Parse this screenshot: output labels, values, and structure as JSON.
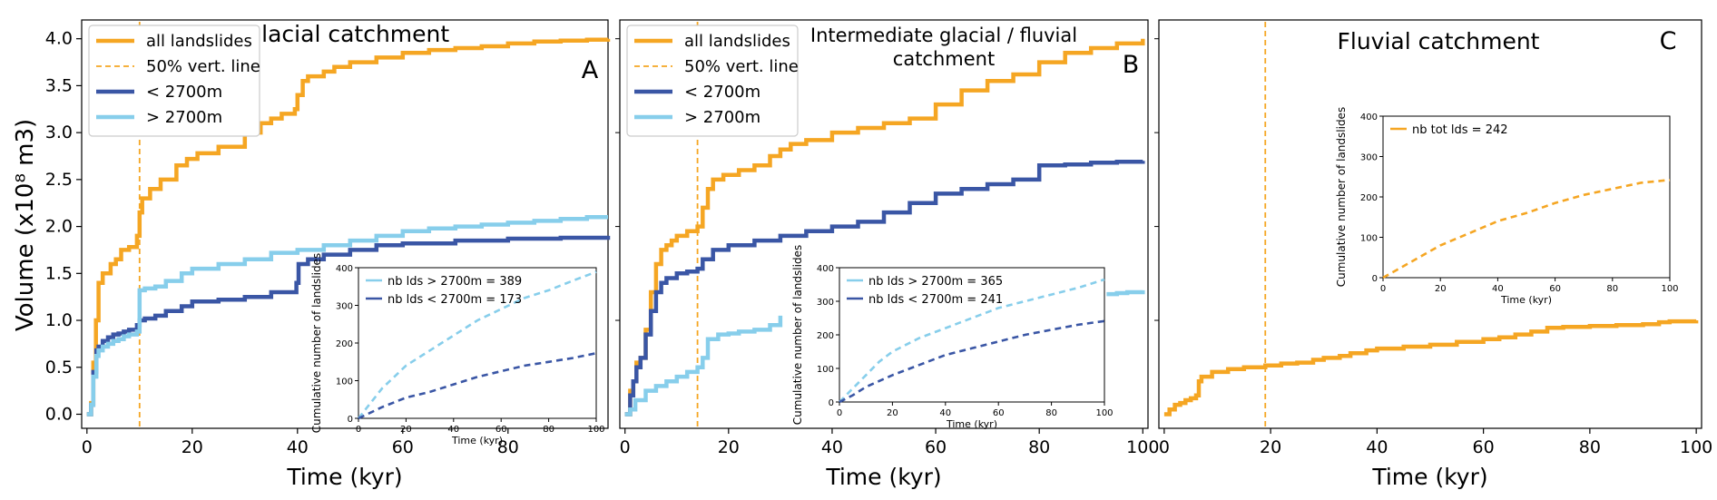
{
  "figure": {
    "ylabel": "Volume (x10⁸ m3)"
  },
  "colors": {
    "all": "#F5A623",
    "low": "#3A56A5",
    "high": "#87CEEB"
  },
  "chart_data": [
    {
      "panel_letter": "A",
      "title": "Glacial catchment",
      "type": "line",
      "xlabel": "Time (kyr)",
      "xlim": [
        -1,
        99
      ],
      "ylim": [
        -0.15,
        4.2
      ],
      "xticks": [
        "0",
        "20",
        "40",
        "60",
        "80"
      ],
      "yticks": [
        "0.0",
        "0.5",
        "1.0",
        "1.5",
        "2.0",
        "2.5",
        "3.0",
        "3.5",
        "4.0"
      ],
      "legend": [
        "all landslides",
        "50% vert. line",
        "< 2700m",
        "> 2700m"
      ],
      "legend_position": "top-left",
      "vline_x": 10,
      "series": [
        {
          "name": "all landslides",
          "x": [
            0,
            0.8,
            1.2,
            1.7,
            2.2,
            3,
            4.5,
            5.5,
            6.5,
            8,
            9.5,
            10,
            10.5,
            12,
            14,
            17,
            19,
            21,
            25,
            30,
            33,
            35,
            37,
            39.5,
            40,
            41,
            42,
            45,
            47,
            50,
            55,
            60,
            65,
            70,
            75,
            80,
            85,
            90,
            95,
            99
          ],
          "values": [
            0,
            0.12,
            0.55,
            1.0,
            1.4,
            1.5,
            1.6,
            1.65,
            1.75,
            1.78,
            1.9,
            2.15,
            2.3,
            2.4,
            2.5,
            2.65,
            2.72,
            2.78,
            2.85,
            3.0,
            3.1,
            3.15,
            3.2,
            3.25,
            3.4,
            3.55,
            3.6,
            3.65,
            3.7,
            3.75,
            3.8,
            3.85,
            3.88,
            3.9,
            3.92,
            3.95,
            3.97,
            3.98,
            3.99,
            4.0
          ]
        },
        {
          "name": "< 2700m",
          "x": [
            0,
            0.8,
            1.2,
            1.8,
            2.2,
            3,
            4,
            5,
            6,
            7,
            8,
            9.5,
            10,
            11,
            13,
            15,
            18,
            20,
            25,
            30,
            35,
            39.8,
            40.2,
            42,
            45,
            50,
            55,
            60,
            70,
            80,
            90,
            99
          ],
          "values": [
            0,
            0.1,
            0.45,
            0.68,
            0.72,
            0.78,
            0.82,
            0.85,
            0.86,
            0.88,
            0.9,
            0.95,
            1.0,
            1.02,
            1.05,
            1.1,
            1.15,
            1.2,
            1.22,
            1.25,
            1.3,
            1.4,
            1.6,
            1.65,
            1.7,
            1.75,
            1.8,
            1.82,
            1.85,
            1.87,
            1.88,
            1.9
          ]
        },
        {
          "name": "> 2700m",
          "x": [
            0,
            0.8,
            1.2,
            1.8,
            2.2,
            3,
            4,
            5,
            6,
            7,
            8,
            9.5,
            10,
            11,
            13,
            15,
            18,
            20,
            25,
            30,
            35,
            40,
            45,
            50,
            55,
            60,
            65,
            70,
            75,
            80,
            85,
            90,
            95,
            99
          ],
          "values": [
            0,
            0.1,
            0.4,
            0.62,
            0.68,
            0.72,
            0.75,
            0.78,
            0.8,
            0.83,
            0.85,
            0.88,
            1.32,
            1.34,
            1.36,
            1.42,
            1.5,
            1.55,
            1.6,
            1.65,
            1.72,
            1.75,
            1.8,
            1.85,
            1.9,
            1.95,
            1.98,
            2.0,
            2.02,
            2.04,
            2.06,
            2.08,
            2.1,
            2.1
          ]
        }
      ],
      "inset": {
        "type": "line",
        "ylabel": "Cumulative number of landslides",
        "xlabel": "Time (kyr)",
        "xlim": [
          0,
          100
        ],
        "ylim": [
          0,
          400
        ],
        "xticks": [
          "0",
          "20",
          "40",
          "60",
          "80",
          "100"
        ],
        "yticks": [
          "0",
          "100",
          "200",
          "300",
          "400"
        ],
        "legend": [
          "nb lds > 2700m = 389",
          "nb lds < 2700m = 173"
        ],
        "series": [
          {
            "name": "nb lds > 2700m = 389",
            "x": [
              0,
              5,
              10,
              15,
              20,
              30,
              40,
              50,
              60,
              70,
              80,
              90,
              100
            ],
            "values": [
              0,
              40,
              80,
              110,
              140,
              180,
              220,
              260,
              290,
              320,
              340,
              365,
              389
            ]
          },
          {
            "name": "nb lds < 2700m = 173",
            "x": [
              0,
              5,
              10,
              20,
              30,
              40,
              50,
              60,
              70,
              80,
              90,
              100
            ],
            "values": [
              0,
              15,
              30,
              55,
              70,
              90,
              110,
              125,
              140,
              150,
              160,
              173
            ]
          }
        ]
      }
    },
    {
      "panel_letter": "B",
      "title": "Intermediate glacial / fluvial catchment",
      "title_lines": [
        "Intermediate glacial / fluvial",
        "catchment"
      ],
      "type": "line",
      "xlabel": "Time (kyr)",
      "xlim": [
        -1,
        101
      ],
      "ylim": [
        -0.15,
        4.2
      ],
      "xticks": [
        "0",
        "20",
        "40",
        "60",
        "80",
        "100"
      ],
      "yticks": [],
      "legend": [
        "all landslides",
        "50% vert. line",
        "< 2700m",
        "> 2700m"
      ],
      "legend_position": "top-left",
      "vline_x": 14,
      "series": [
        {
          "name": "all landslides",
          "x": [
            0,
            1,
            1.6,
            2.2,
            3,
            4,
            5,
            6,
            7,
            8,
            9,
            10,
            12,
            14,
            15,
            16,
            17,
            19,
            22,
            25,
            28,
            30,
            32,
            35,
            40,
            45,
            50,
            55,
            60,
            65,
            70,
            75,
            80,
            85,
            90,
            95,
            100
          ],
          "values": [
            0,
            0.25,
            0.35,
            0.55,
            0.6,
            0.9,
            1.3,
            1.6,
            1.75,
            1.8,
            1.85,
            1.9,
            1.95,
            2.0,
            2.2,
            2.4,
            2.5,
            2.55,
            2.6,
            2.65,
            2.75,
            2.82,
            2.88,
            2.92,
            3.0,
            3.05,
            3.1,
            3.15,
            3.3,
            3.45,
            3.55,
            3.62,
            3.75,
            3.85,
            3.9,
            3.95,
            4.0
          ]
        },
        {
          "name": "< 2700m",
          "x": [
            0,
            1,
            1.6,
            2.2,
            3,
            4,
            5,
            6,
            7,
            8,
            10,
            12,
            14,
            15,
            17,
            20,
            25,
            30,
            35,
            40,
            45,
            50,
            55,
            60,
            65,
            70,
            75,
            80,
            85,
            90,
            95,
            100
          ],
          "values": [
            0,
            0.2,
            0.35,
            0.5,
            0.6,
            0.85,
            1.1,
            1.3,
            1.4,
            1.45,
            1.5,
            1.52,
            1.55,
            1.65,
            1.75,
            1.8,
            1.85,
            1.9,
            1.95,
            2.0,
            2.05,
            2.15,
            2.25,
            2.35,
            2.4,
            2.45,
            2.5,
            2.65,
            2.66,
            2.68,
            2.69,
            2.7
          ]
        },
        {
          "name": "> 2700m",
          "x": [
            0,
            1,
            2,
            4,
            6,
            8,
            10,
            12,
            14,
            15,
            16,
            18,
            20,
            22,
            25,
            28,
            30
          ],
          "values": [
            0,
            0.05,
            0.15,
            0.25,
            0.3,
            0.35,
            0.4,
            0.45,
            0.5,
            0.6,
            0.8,
            0.85,
            0.86,
            0.88,
            0.9,
            0.95,
            1.05
          ]
        },
        {
          "name": "> 2700m (right part)",
          "x": [
            93,
            95,
            97,
            100
          ],
          "values": [
            1.28,
            1.29,
            1.3,
            1.32
          ]
        }
      ],
      "inset": {
        "type": "line",
        "ylabel": "Cumulative number of landslides",
        "xlabel": "Time (kyr)",
        "xlim": [
          0,
          100
        ],
        "ylim": [
          0,
          400
        ],
        "xticks": [
          "0",
          "20",
          "40",
          "60",
          "80",
          "100"
        ],
        "yticks": [
          "0",
          "100",
          "200",
          "300",
          "400"
        ],
        "legend": [
          "nb lds > 2700m = 365",
          "nb lds < 2700m = 241"
        ],
        "series": [
          {
            "name": "nb lds > 2700m = 365",
            "x": [
              0,
              5,
              10,
              15,
              20,
              30,
              40,
              50,
              60,
              70,
              80,
              90,
              100
            ],
            "values": [
              0,
              40,
              80,
              120,
              150,
              190,
              220,
              250,
              280,
              300,
              320,
              340,
              365
            ]
          },
          {
            "name": "nb lds < 2700m = 241",
            "x": [
              0,
              5,
              10,
              20,
              30,
              40,
              50,
              60,
              70,
              80,
              90,
              100
            ],
            "values": [
              0,
              20,
              45,
              80,
              110,
              140,
              160,
              180,
              200,
              215,
              230,
              241
            ]
          }
        ]
      }
    },
    {
      "panel_letter": "C",
      "title": "Fluvial catchment",
      "type": "line",
      "xlabel": "Time (kyr)",
      "xlim": [
        -1,
        101
      ],
      "ylim": [
        -0.15,
        4.2
      ],
      "xticks": [
        "0",
        "20",
        "40",
        "60",
        "80",
        "100"
      ],
      "yticks": [],
      "vline_x": 19,
      "series": [
        {
          "name": "all landslides",
          "x": [
            0,
            1,
            2,
            3,
            4,
            5,
            6,
            6.5,
            7,
            9,
            12,
            15,
            19,
            22,
            25,
            28,
            30,
            33,
            35,
            38,
            40,
            45,
            50,
            55,
            60,
            63,
            66,
            69,
            72,
            75,
            80,
            85,
            90,
            93,
            95,
            100
          ],
          "values": [
            0,
            0.05,
            0.1,
            0.12,
            0.15,
            0.17,
            0.2,
            0.35,
            0.4,
            0.45,
            0.48,
            0.5,
            0.52,
            0.54,
            0.55,
            0.58,
            0.6,
            0.62,
            0.65,
            0.68,
            0.7,
            0.72,
            0.74,
            0.77,
            0.8,
            0.82,
            0.85,
            0.88,
            0.92,
            0.93,
            0.94,
            0.95,
            0.96,
            0.98,
            0.99,
            1.0
          ]
        }
      ],
      "inset": {
        "type": "line",
        "ylabel": "Cumulative number of landslides",
        "xlabel": "Time (kyr)",
        "xlim": [
          0,
          100
        ],
        "ylim": [
          0,
          400
        ],
        "xticks": [
          "0",
          "20",
          "40",
          "60",
          "80",
          "100"
        ],
        "yticks": [
          "0",
          "100",
          "200",
          "300",
          "400"
        ],
        "legend": [
          "nb tot lds = 242"
        ],
        "series": [
          {
            "name": "nb tot lds = 242",
            "x": [
              0,
              5,
              10,
              15,
              20,
              30,
              40,
              50,
              60,
              70,
              80,
              90,
              100
            ],
            "values": [
              0,
              20,
              40,
              60,
              80,
              110,
              140,
              160,
              185,
              205,
              220,
              235,
              242
            ]
          }
        ]
      }
    }
  ]
}
